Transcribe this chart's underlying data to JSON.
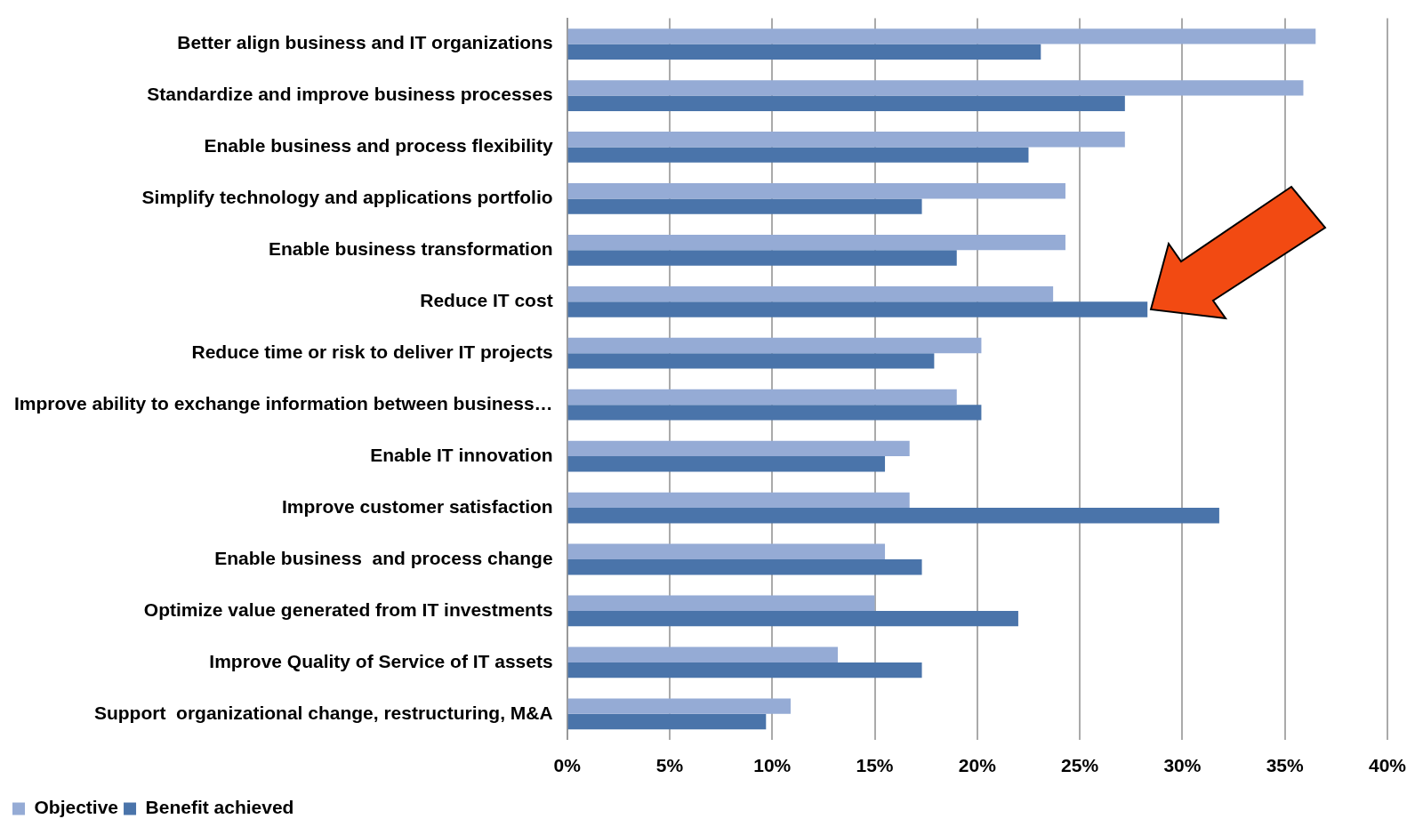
{
  "chart_data": {
    "type": "bar",
    "orientation": "horizontal",
    "categories": [
      "Better align business and IT organizations",
      "Standardize and improve business processes",
      "Enable business and process flexibility",
      "Simplify technology and applications portfolio",
      "Enable business transformation",
      "Reduce IT cost",
      "Reduce time or risk to deliver IT projects",
      "Improve ability to exchange information between business…",
      "Enable IT innovation",
      "Improve customer satisfaction",
      "Enable business  and process change",
      "Optimize value generated from IT investments",
      "Improve Quality of Service of IT assets",
      "Support  organizational change, restructuring, M&A"
    ],
    "series": [
      {
        "name": "Objective",
        "color": "#95abd5",
        "values": [
          36.5,
          35.9,
          27.2,
          24.3,
          24.3,
          23.7,
          20.2,
          19.0,
          16.7,
          16.7,
          15.5,
          15.0,
          13.2,
          10.9
        ]
      },
      {
        "name": "Benefit achieved",
        "color": "#4a74aa",
        "values": [
          23.1,
          27.2,
          22.5,
          17.3,
          19.0,
          28.3,
          17.9,
          20.2,
          15.5,
          31.8,
          17.3,
          22.0,
          17.3,
          9.7
        ]
      }
    ],
    "xlim": [
      0,
      40
    ],
    "xticks": [
      {
        "value": 0,
        "label": "0%"
      },
      {
        "value": 5,
        "label": "5%"
      },
      {
        "value": 10,
        "label": "10%"
      },
      {
        "value": 15,
        "label": "15%"
      },
      {
        "value": 20,
        "label": "20%"
      },
      {
        "value": 25,
        "label": "25%"
      },
      {
        "value": 30,
        "label": "30%"
      },
      {
        "value": 35,
        "label": "35%"
      },
      {
        "value": 40,
        "label": "40%"
      }
    ],
    "grid": "x",
    "legend": "bottom"
  }
}
